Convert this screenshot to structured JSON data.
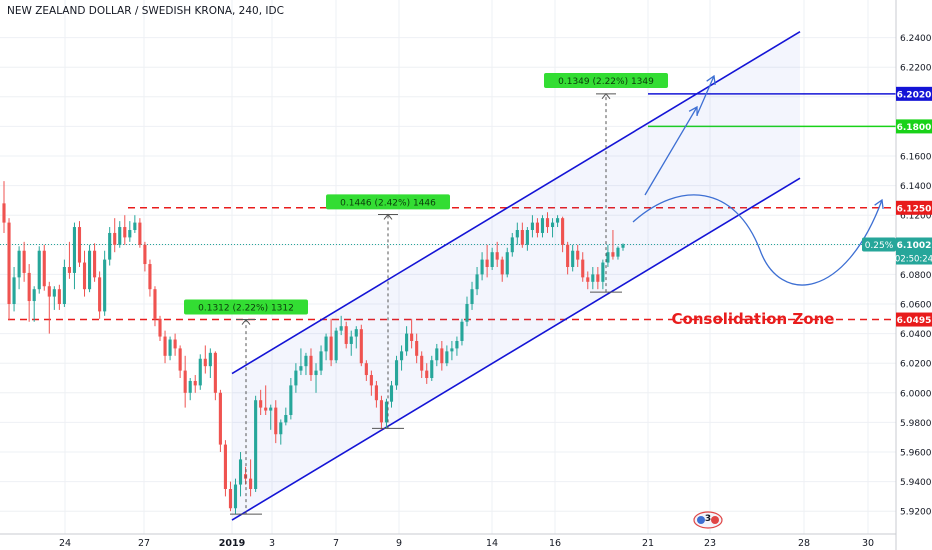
{
  "title": "NEW ZEALAND DOLLAR / SWEDISH KRONA, 240, IDC",
  "annotation_text": "Consolidation Zone",
  "events_badge": "3",
  "colors": {
    "bull": "#26a69a",
    "bear": "#ef5350",
    "channel": "#1414d6",
    "red_line": "#e81c1c",
    "green_line": "#19d219",
    "arrow": "#3d6fd3",
    "grid": "#eef0f4"
  },
  "chart_data": {
    "type": "candlestick",
    "symbol": "NZDSEK",
    "timeframe": "240",
    "x_tick_labels": [
      "24",
      "27",
      "2019",
      "3",
      "7",
      "9",
      "14",
      "16",
      "21",
      "23",
      "28",
      "30"
    ],
    "y_range": [
      5.91,
      6.26
    ],
    "y_tick_labels": [
      "6.2400",
      "6.2200",
      "6.2000",
      "6.1800",
      "6.1600",
      "6.1400",
      "6.1200",
      "6.1000",
      "6.0800",
      "6.0600",
      "6.0400",
      "6.0200",
      "6.0000",
      "5.9800",
      "5.9600",
      "5.9400",
      "5.9200"
    ],
    "price_labels": [
      {
        "label": "6.2020",
        "price": 6.202,
        "color": "#1414d6"
      },
      {
        "label": "6.1800",
        "price": 6.18,
        "color": "#19d219"
      },
      {
        "label": "6.1250",
        "price": 6.125,
        "color": "#e81c1c"
      },
      {
        "label": "6.1002",
        "price": 6.1002,
        "color": "#26a69a"
      },
      {
        "label": "6.0495",
        "price": 6.0495,
        "color": "#e81c1c"
      }
    ],
    "last_change": "0.25%",
    "countdown": "02:50:24",
    "horizontal_levels": [
      {
        "price": 6.202,
        "style": "solid",
        "color": "blue"
      },
      {
        "price": 6.18,
        "style": "solid",
        "color": "green"
      },
      {
        "price": 6.125,
        "style": "dashed",
        "color": "red"
      },
      {
        "price": 6.0495,
        "style": "dashed",
        "color": "red"
      }
    ],
    "measurements": [
      {
        "label": "0.1312 (2.22%) 1312"
      },
      {
        "label": "0.1446 (2.42%) 1446"
      },
      {
        "label": "0.1349 (2.22%) 1349"
      }
    ],
    "candles": [
      [
        6.128,
        6.143,
        6.108,
        6.115
      ],
      [
        6.115,
        6.118,
        6.049,
        6.06
      ],
      [
        6.06,
        6.085,
        6.055,
        6.078
      ],
      [
        6.078,
        6.099,
        6.07,
        6.096
      ],
      [
        6.096,
        6.102,
        6.075,
        6.081
      ],
      [
        6.081,
        6.087,
        6.048,
        6.062
      ],
      [
        6.062,
        6.072,
        6.048,
        6.07
      ],
      [
        6.07,
        6.099,
        6.067,
        6.096
      ],
      [
        6.096,
        6.1,
        6.069,
        6.072
      ],
      [
        6.072,
        6.075,
        6.04,
        6.065
      ],
      [
        6.065,
        6.072,
        6.056,
        6.07
      ],
      [
        6.07,
        6.073,
        6.056,
        6.06
      ],
      [
        6.06,
        6.09,
        6.058,
        6.085
      ],
      [
        6.085,
        6.102,
        6.077,
        6.081
      ],
      [
        6.081,
        6.115,
        6.07,
        6.112
      ],
      [
        6.112,
        6.116,
        6.085,
        6.088
      ],
      [
        6.088,
        6.096,
        6.065,
        6.07
      ],
      [
        6.07,
        6.1,
        6.068,
        6.096
      ],
      [
        6.096,
        6.101,
        6.075,
        6.078
      ],
      [
        6.078,
        6.082,
        6.05,
        6.055
      ],
      [
        6.055,
        6.096,
        6.052,
        6.09
      ],
      [
        6.09,
        6.112,
        6.086,
        6.108
      ],
      [
        6.108,
        6.118,
        6.095,
        6.1
      ],
      [
        6.1,
        6.116,
        6.098,
        6.112
      ],
      [
        6.112,
        6.12,
        6.1,
        6.105
      ],
      [
        6.105,
        6.116,
        6.102,
        6.11
      ],
      [
        6.11,
        6.12,
        6.108,
        6.115
      ],
      [
        6.115,
        6.118,
        6.098,
        6.1
      ],
      [
        6.1,
        6.102,
        6.082,
        6.087
      ],
      [
        6.087,
        6.09,
        6.065,
        6.07
      ],
      [
        6.07,
        6.072,
        6.045,
        6.05
      ],
      [
        6.05,
        6.052,
        6.035,
        6.038
      ],
      [
        6.038,
        6.042,
        6.02,
        6.025
      ],
      [
        6.025,
        6.038,
        6.022,
        6.036
      ],
      [
        6.036,
        6.04,
        6.025,
        6.03
      ],
      [
        6.03,
        6.032,
        6.01,
        6.015
      ],
      [
        6.015,
        6.025,
        5.99,
        6.0
      ],
      [
        6.0,
        6.01,
        5.995,
        6.008
      ],
      [
        6.008,
        6.012,
        6.0,
        6.005
      ],
      [
        6.005,
        6.026,
        6.002,
        6.023
      ],
      [
        6.023,
        6.032,
        6.013,
        6.018
      ],
      [
        6.018,
        6.03,
        6.01,
        6.027
      ],
      [
        6.027,
        6.028,
        5.995,
        6.0
      ],
      [
        6.0,
        6.002,
        5.96,
        5.965
      ],
      [
        5.965,
        5.968,
        5.93,
        5.935
      ],
      [
        5.935,
        5.94,
        5.92,
        5.922
      ],
      [
        5.922,
        5.942,
        5.918,
        5.938
      ],
      [
        5.938,
        5.96,
        5.93,
        5.955
      ],
      [
        5.945,
        5.95,
        5.938,
        5.942
      ],
      [
        5.942,
        5.955,
        5.93,
        5.935
      ],
      [
        5.935,
        5.998,
        5.933,
        5.995
      ],
      [
        5.995,
        6.002,
        5.985,
        5.99
      ],
      [
        5.99,
        6.005,
        5.985,
        5.988
      ],
      [
        5.988,
        5.992,
        5.975,
        5.99
      ],
      [
        5.99,
        5.995,
        5.966,
        5.972
      ],
      [
        5.972,
        5.982,
        5.965,
        5.98
      ],
      [
        5.98,
        5.99,
        5.978,
        5.985
      ],
      [
        5.985,
        6.01,
        5.982,
        6.005
      ],
      [
        6.005,
        6.02,
        6.0,
        6.015
      ],
      [
        6.015,
        6.03,
        6.012,
        6.018
      ],
      [
        6.018,
        6.027,
        6.012,
        6.025
      ],
      [
        6.025,
        6.03,
        6.008,
        6.012
      ],
      [
        6.012,
        6.02,
        6.0,
        6.015
      ],
      [
        6.015,
        6.032,
        6.012,
        6.028
      ],
      [
        6.028,
        6.04,
        6.022,
        6.038
      ],
      [
        6.038,
        6.05,
        6.018,
        6.022
      ],
      [
        6.022,
        6.044,
        6.02,
        6.042
      ],
      [
        6.042,
        6.052,
        6.039,
        6.045
      ],
      [
        6.045,
        6.048,
        6.03,
        6.033
      ],
      [
        6.033,
        6.042,
        6.025,
        6.038
      ],
      [
        6.038,
        6.045,
        6.03,
        6.043
      ],
      [
        6.043,
        6.046,
        6.018,
        6.02
      ],
      [
        6.02,
        6.022,
        6.008,
        6.012
      ],
      [
        6.012,
        6.015,
        5.998,
        6.005
      ],
      [
        6.005,
        6.008,
        5.99,
        5.995
      ],
      [
        5.995,
        5.998,
        5.975,
        5.98
      ],
      [
        5.98,
        5.996,
        5.976,
        5.994
      ],
      [
        5.994,
        6.008,
        5.99,
        6.005
      ],
      [
        6.005,
        6.025,
        6.002,
        6.022
      ],
      [
        6.022,
        6.032,
        6.015,
        6.028
      ],
      [
        6.028,
        6.045,
        6.025,
        6.04
      ],
      [
        6.04,
        6.05,
        6.03,
        6.035
      ],
      [
        6.035,
        6.04,
        6.02,
        6.025
      ],
      [
        6.025,
        6.028,
        6.01,
        6.015
      ],
      [
        6.015,
        6.02,
        6.006,
        6.01
      ],
      [
        6.01,
        6.025,
        6.008,
        6.022
      ],
      [
        6.022,
        6.033,
        6.018,
        6.03
      ],
      [
        6.03,
        6.035,
        6.015,
        6.02
      ],
      [
        6.02,
        6.032,
        6.018,
        6.028
      ],
      [
        6.028,
        6.035,
        6.022,
        6.03
      ],
      [
        6.03,
        6.038,
        6.025,
        6.035
      ],
      [
        6.035,
        6.05,
        6.032,
        6.048
      ],
      [
        6.048,
        6.065,
        6.045,
        6.06
      ],
      [
        6.06,
        6.075,
        6.056,
        6.07
      ],
      [
        6.07,
        6.085,
        6.066,
        6.08
      ],
      [
        6.08,
        6.095,
        6.076,
        6.09
      ],
      [
        6.09,
        6.1,
        6.078,
        6.085
      ],
      [
        6.085,
        6.098,
        6.083,
        6.095
      ],
      [
        6.095,
        6.102,
        6.085,
        6.09
      ],
      [
        6.09,
        6.092,
        6.075,
        6.08
      ],
      [
        6.08,
        6.098,
        6.078,
        6.095
      ],
      [
        6.095,
        6.108,
        6.092,
        6.105
      ],
      [
        6.105,
        6.115,
        6.1,
        6.11
      ],
      [
        6.11,
        6.115,
        6.098,
        6.1
      ],
      [
        6.1,
        6.112,
        6.096,
        6.11
      ],
      [
        6.11,
        6.12,
        6.105,
        6.115
      ],
      [
        6.115,
        6.118,
        6.105,
        6.108
      ],
      [
        6.108,
        6.12,
        6.105,
        6.118
      ],
      [
        6.118,
        6.122,
        6.108,
        6.112
      ],
      [
        6.112,
        6.118,
        6.105,
        6.115
      ],
      [
        6.115,
        6.12,
        6.112,
        6.118
      ],
      [
        6.118,
        6.119,
        6.095,
        6.1
      ],
      [
        6.1,
        6.102,
        6.08,
        6.085
      ],
      [
        6.085,
        6.1,
        6.082,
        6.096
      ],
      [
        6.096,
        6.1,
        6.085,
        6.09
      ],
      [
        6.09,
        6.095,
        6.075,
        6.078
      ],
      [
        6.078,
        6.082,
        6.07,
        6.075
      ],
      [
        6.075,
        6.085,
        6.07,
        6.08
      ],
      [
        6.08,
        6.085,
        6.07,
        6.075
      ],
      [
        6.075,
        6.09,
        6.07,
        6.088
      ],
      [
        6.088,
        6.1,
        6.085,
        6.095
      ],
      [
        6.095,
        6.11,
        6.09,
        6.092
      ],
      [
        6.092,
        6.099,
        6.09,
        6.098
      ],
      [
        6.098,
        6.101,
        6.096,
        6.1002
      ]
    ]
  }
}
